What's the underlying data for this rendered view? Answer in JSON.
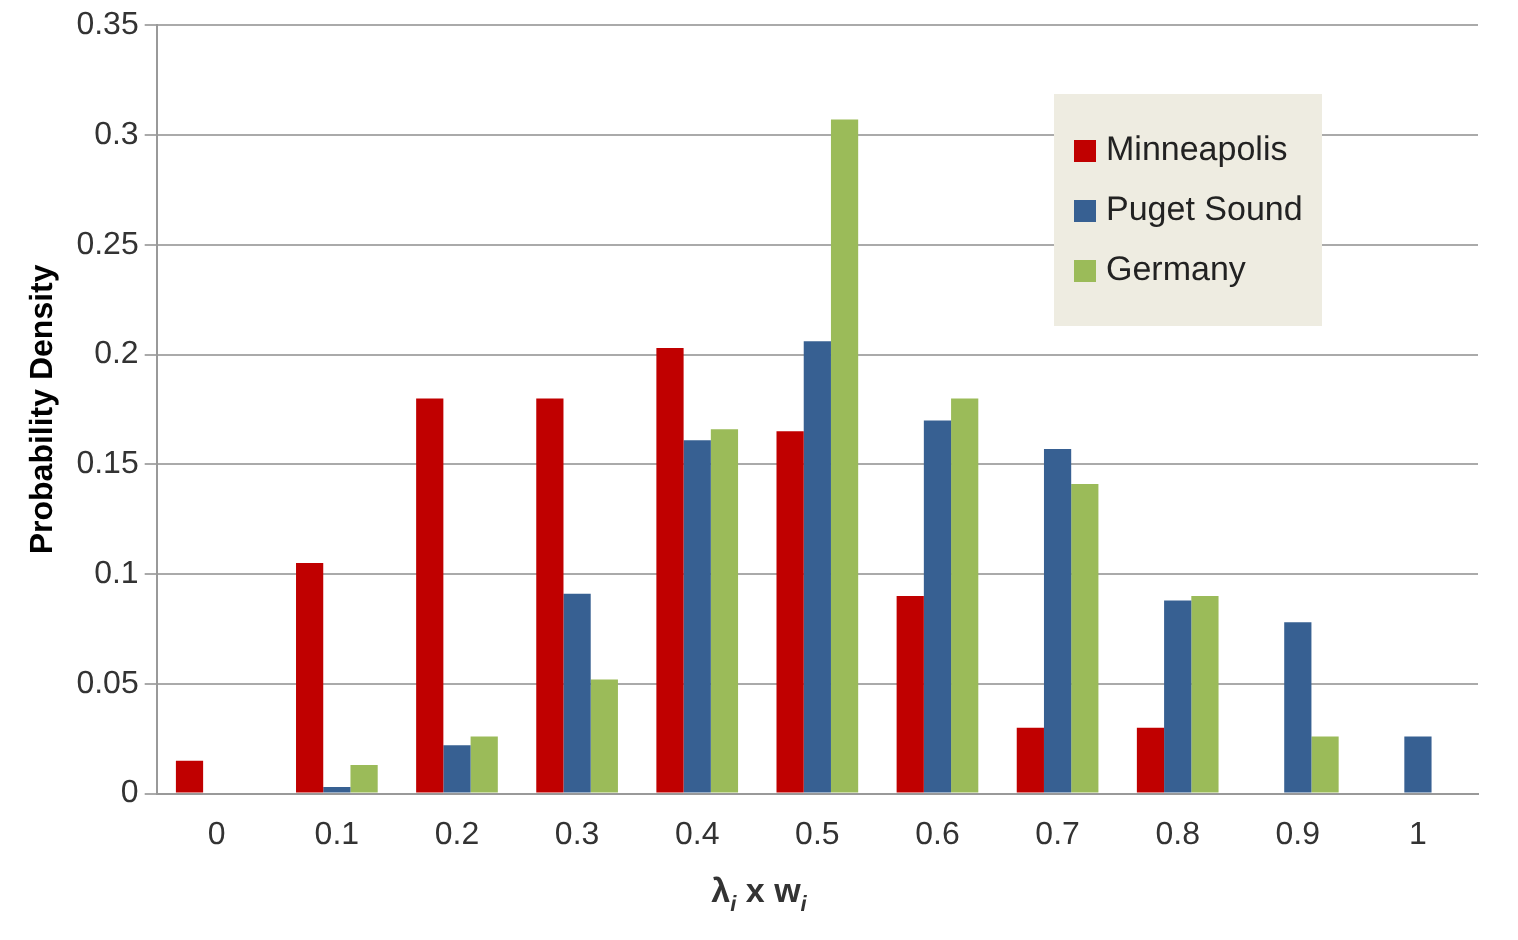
{
  "chart_data": {
    "type": "bar",
    "xlabel": "λ$_{i}$ x w$_{i}$",
    "ylabel": "Probability Density",
    "categories": [
      "0",
      "0.1",
      "0.2",
      "0.3",
      "0.4",
      "0.5",
      "0.6",
      "0.7",
      "0.8",
      "0.9",
      "1"
    ],
    "series": [
      {
        "name": "Minneapolis",
        "color": "#c00000",
        "values": [
          0.015,
          0.105,
          0.18,
          0.18,
          0.203,
          0.165,
          0.09,
          0.03,
          0.03,
          0,
          0
        ]
      },
      {
        "name": "Puget Sound",
        "color": "#376092",
        "values": [
          0,
          0.003,
          0.022,
          0.091,
          0.161,
          0.206,
          0.17,
          0.157,
          0.088,
          0.078,
          0.026
        ]
      },
      {
        "name": "Germany",
        "color": "#9bbb59",
        "values": [
          0,
          0.013,
          0.026,
          0.052,
          0.166,
          0.307,
          0.18,
          0.141,
          0.09,
          0.026,
          0
        ]
      }
    ],
    "ylim": [
      0,
      0.35
    ],
    "yticks": [
      0,
      0.05,
      0.1,
      0.15,
      0.2,
      0.25,
      0.3,
      0.35
    ],
    "grid": "y",
    "legend": "top right"
  }
}
